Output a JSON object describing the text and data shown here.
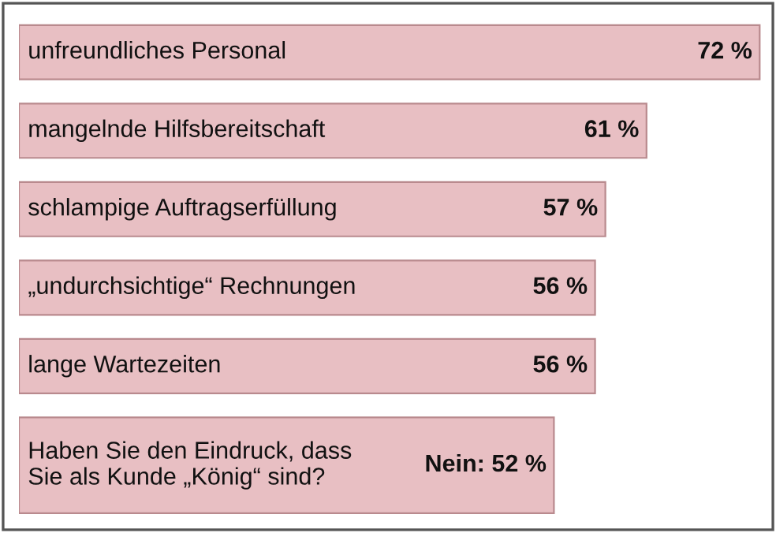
{
  "chart_data": {
    "type": "bar",
    "orientation": "horizontal",
    "categories": [
      "unfreundliches Personal",
      "mangelnde Hilfsbereitschaft",
      "schlampige Auftragserfüllung",
      "„undurchsichtige“ Rechnungen",
      "lange Wartezeiten",
      "Haben Sie den Eindruck, dass\nSie als Kunde „König“ sind?"
    ],
    "values": [
      72,
      61,
      57,
      56,
      56,
      52
    ],
    "value_labels": [
      "72 %",
      "61 %",
      "57 %",
      "56 %",
      "56 %",
      "Nein: 52 %"
    ],
    "color": "#e8bfc3",
    "legend": false,
    "tick_labels": false
  }
}
